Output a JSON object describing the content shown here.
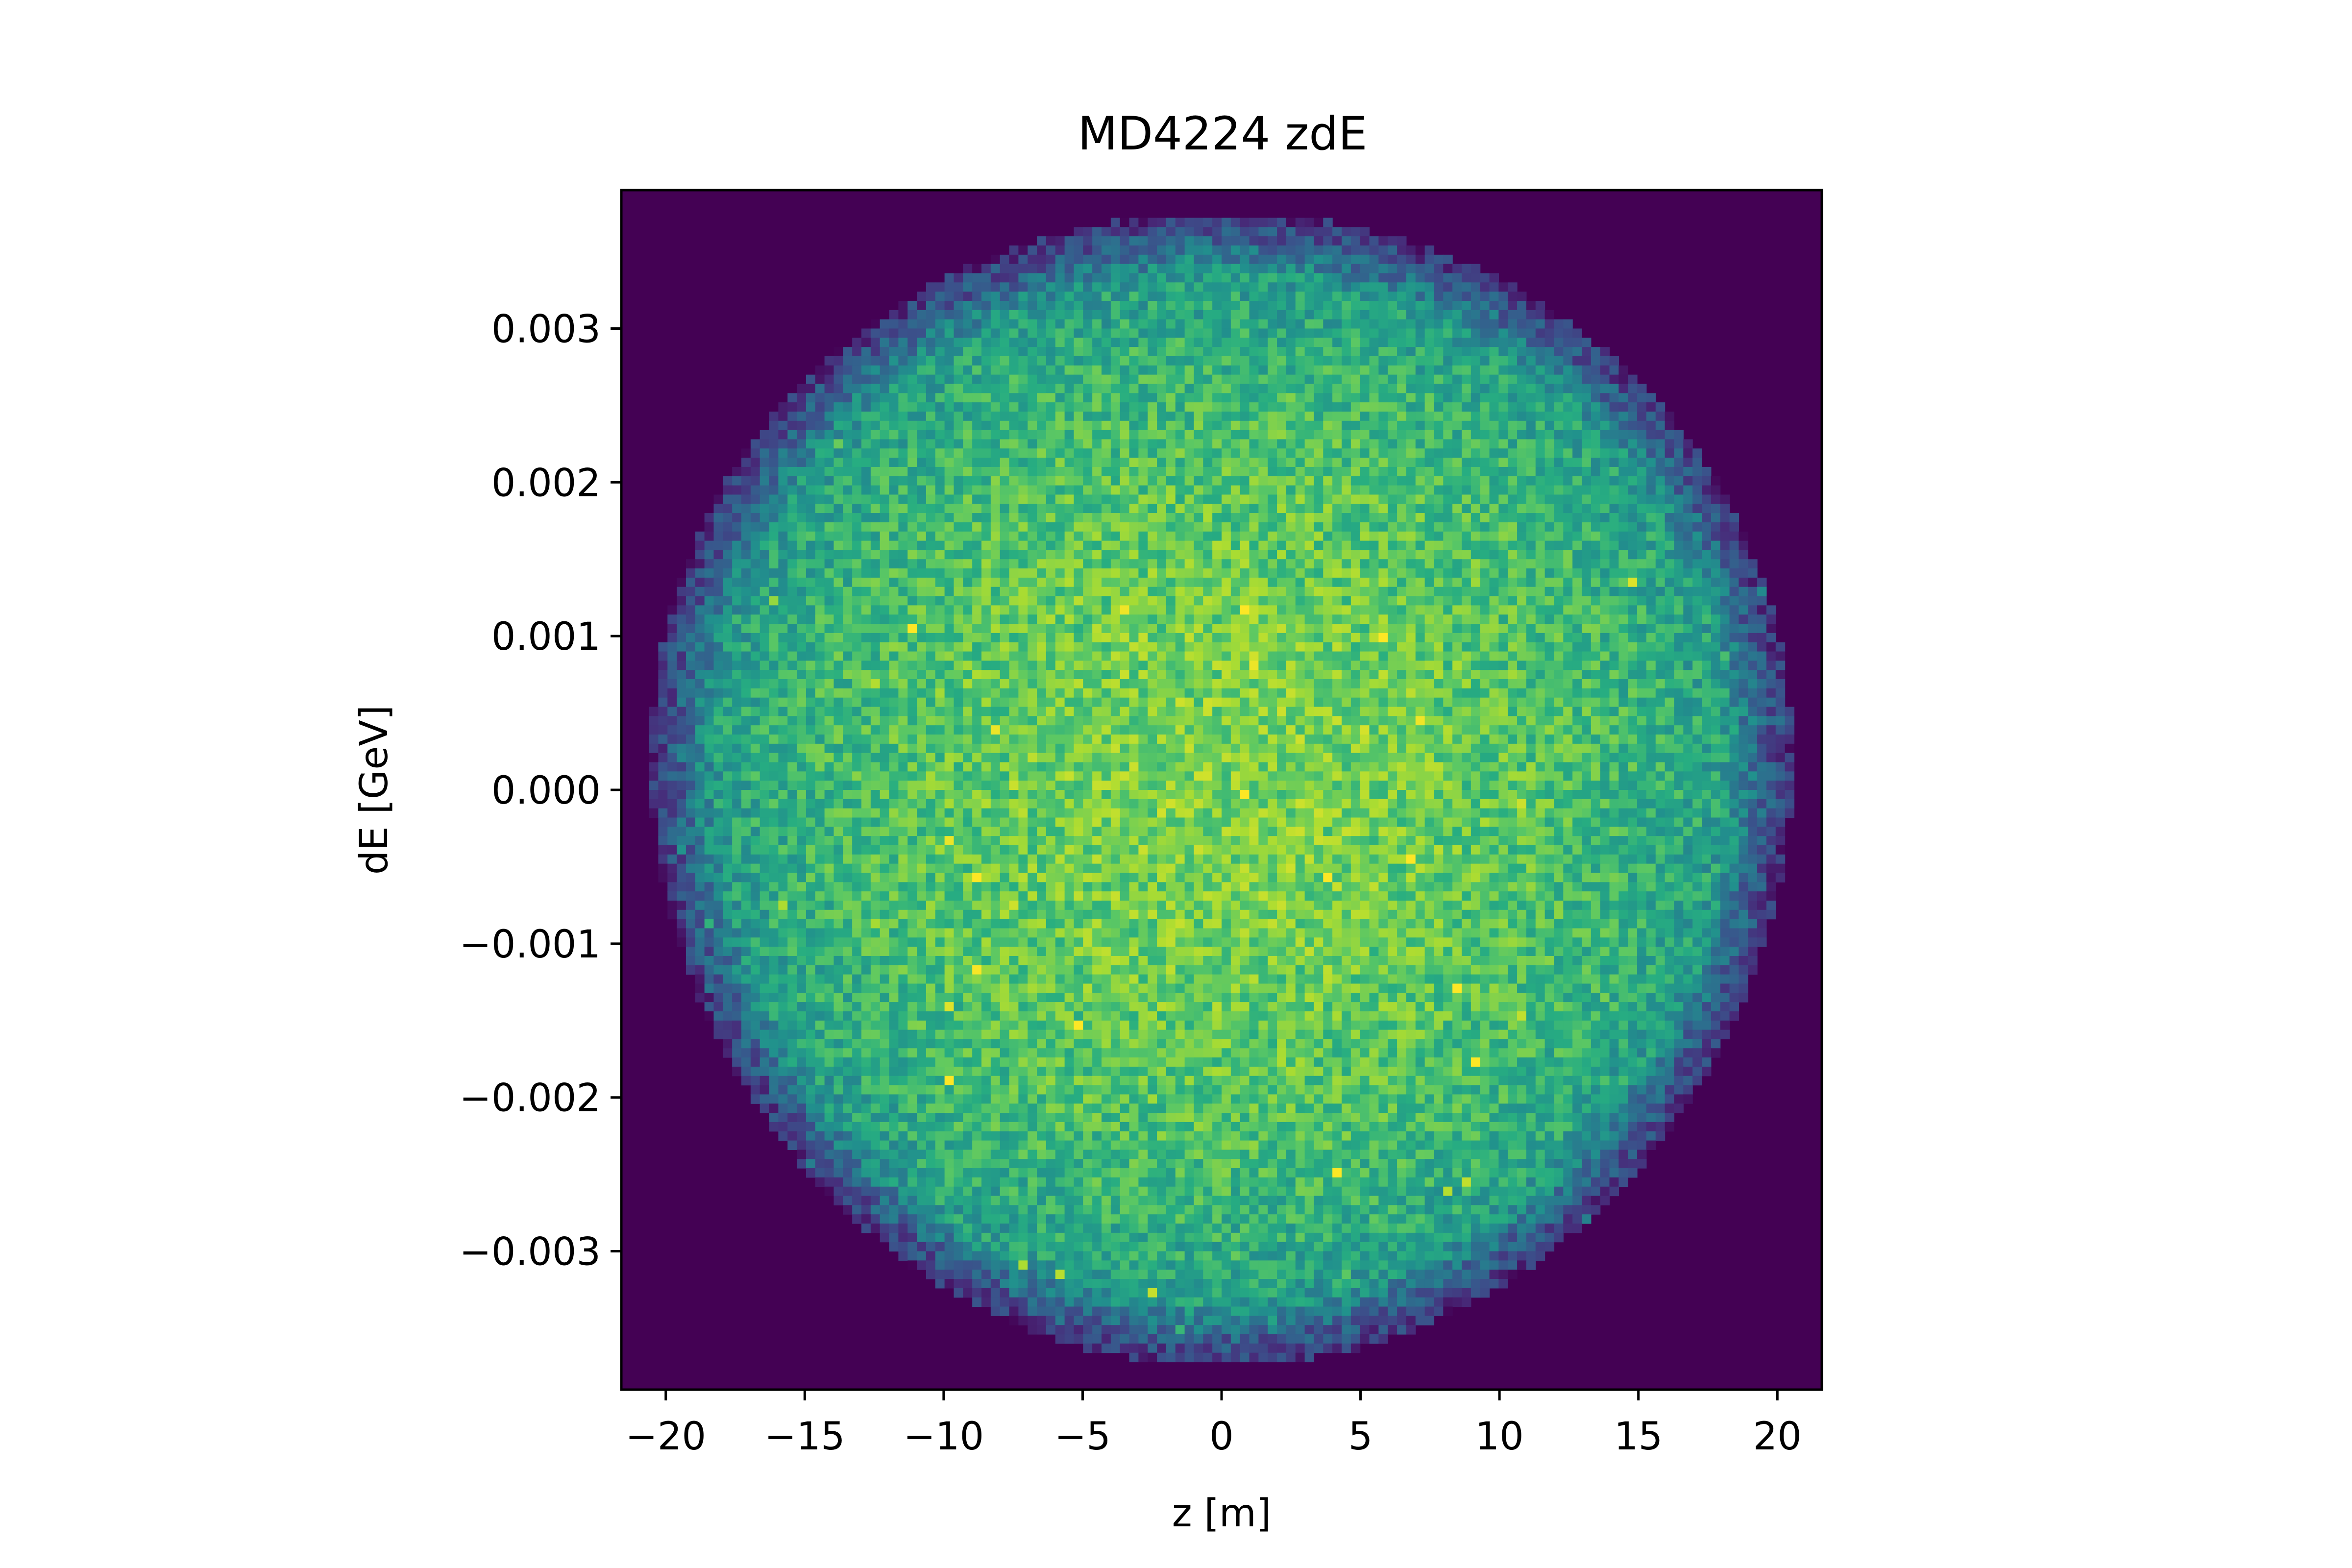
{
  "chart_data": {
    "type": "heatmap",
    "title": "MD4224 zdE",
    "xlabel": "z [m]",
    "ylabel": "dE [GeV]",
    "xlim": [
      -21.6,
      21.6
    ],
    "ylim": [
      -0.0039,
      0.0039
    ],
    "x_ticks": [
      -20,
      -15,
      -10,
      -5,
      0,
      5,
      10,
      15,
      20
    ],
    "x_tick_labels": [
      "−20",
      "−15",
      "−10",
      "−5",
      "0",
      "5",
      "10",
      "15",
      "20"
    ],
    "y_ticks": [
      -0.003,
      -0.002,
      -0.001,
      0.0,
      0.001,
      0.002,
      0.003
    ],
    "y_tick_labels": [
      "−0.003",
      "−0.002",
      "−0.001",
      "0.000",
      "0.001",
      "0.002",
      "0.003"
    ],
    "colormap": "viridis",
    "background_color": "#440154",
    "distribution": {
      "shape": "roughly elliptical bunch, slightly wider at the upper-left and right edges",
      "z_center": 0,
      "dE_center": 0,
      "z_extent": [
        -20.5,
        20.5
      ],
      "dE_extent": [
        -0.0037,
        0.0038
      ],
      "bins_z": 130,
      "bins_dE": 130,
      "peak_density_relative": 1.0,
      "edge_density_relative": 0.35
    },
    "grid": false,
    "colorbar": false
  }
}
